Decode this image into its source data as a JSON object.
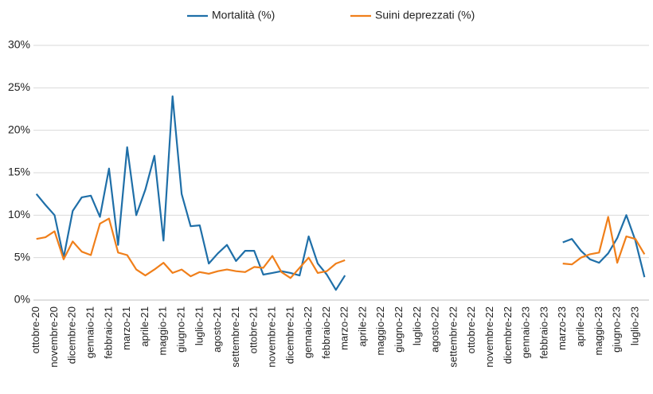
{
  "chart_data": {
    "type": "line",
    "categories": [
      "ottobre-20",
      null,
      "novembre-20",
      null,
      "dicembre-20",
      null,
      "gennaio-21",
      null,
      "febbraio-21",
      null,
      "marzo-21",
      null,
      "aprile-21",
      null,
      "maggio-21",
      null,
      "giugno-21",
      null,
      "luglio-21",
      null,
      "agosto-21",
      null,
      "settembre-21",
      null,
      "ottobre-21",
      null,
      "novembre-21",
      null,
      "dicembre-21",
      null,
      "gennaio-22",
      null,
      "febbraio-22",
      null,
      "marzo-22",
      null,
      "aprile-22",
      null,
      "maggio-22",
      null,
      "giugno-22",
      null,
      "luglio-22",
      null,
      "agosto-22",
      null,
      "settembre-22",
      null,
      "ottobre-22",
      null,
      "novembre-22",
      null,
      "dicembre-22",
      null,
      "gennaio-23",
      null,
      "febbraio-23",
      null,
      "marzo-23",
      null,
      "aprile-23",
      null,
      "maggio-23",
      null,
      "giugno-23",
      null,
      "luglio-23",
      null
    ],
    "series": [
      {
        "name": "Mortalità (%)",
        "color": "#1f6fa8",
        "values": [
          12.5,
          11.2,
          10,
          5,
          10.5,
          12.1,
          12.3,
          9.8,
          15.5,
          6.5,
          18,
          10,
          13,
          17,
          7,
          24,
          12.5,
          8.7,
          8.8,
          4.3,
          5.5,
          6.5,
          4.6,
          5.8,
          5.8,
          3.0,
          3.2,
          3.4,
          3.2,
          2.9,
          7.5,
          4.3,
          3,
          1.2,
          2.9,
          null,
          null,
          null,
          null,
          null,
          null,
          null,
          null,
          null,
          null,
          null,
          null,
          null,
          null,
          null,
          null,
          null,
          null,
          null,
          null,
          null,
          null,
          null,
          6.8,
          7.2,
          5.8,
          4.8,
          4.4,
          5.5,
          7.3,
          10,
          7,
          2.7
        ]
      },
      {
        "name": "Suini deprezzati (%)",
        "color": "#f07f1a",
        "values": [
          7.2,
          7.4,
          8.1,
          4.8,
          6.9,
          5.7,
          5.3,
          9,
          9.6,
          5.6,
          5.3,
          3.6,
          2.9,
          3.6,
          4.4,
          3.2,
          3.6,
          2.8,
          3.3,
          3.1,
          3.4,
          3.6,
          3.4,
          3.3,
          3.9,
          3.8,
          5.2,
          3.3,
          2.6,
          3.8,
          5.0,
          3.2,
          3.4,
          4.3,
          4.7,
          null,
          null,
          null,
          null,
          null,
          null,
          null,
          null,
          null,
          null,
          null,
          null,
          null,
          null,
          null,
          null,
          null,
          null,
          null,
          null,
          null,
          null,
          null,
          4.3,
          4.2,
          5.0,
          5.4,
          5.6,
          9.8,
          4.4,
          7.5,
          7.2,
          5.4
        ]
      }
    ],
    "ylim": [
      0,
      30
    ],
    "yticks": [
      {
        "value": 0,
        "label": "0%"
      },
      {
        "value": 5,
        "label": "5%"
      },
      {
        "value": 10,
        "label": "10%"
      },
      {
        "value": 15,
        "label": "15%"
      },
      {
        "value": 20,
        "label": "20%"
      },
      {
        "value": 25,
        "label": "25%"
      },
      {
        "value": 30,
        "label": "30%"
      }
    ],
    "grid": true,
    "legend": "top"
  }
}
